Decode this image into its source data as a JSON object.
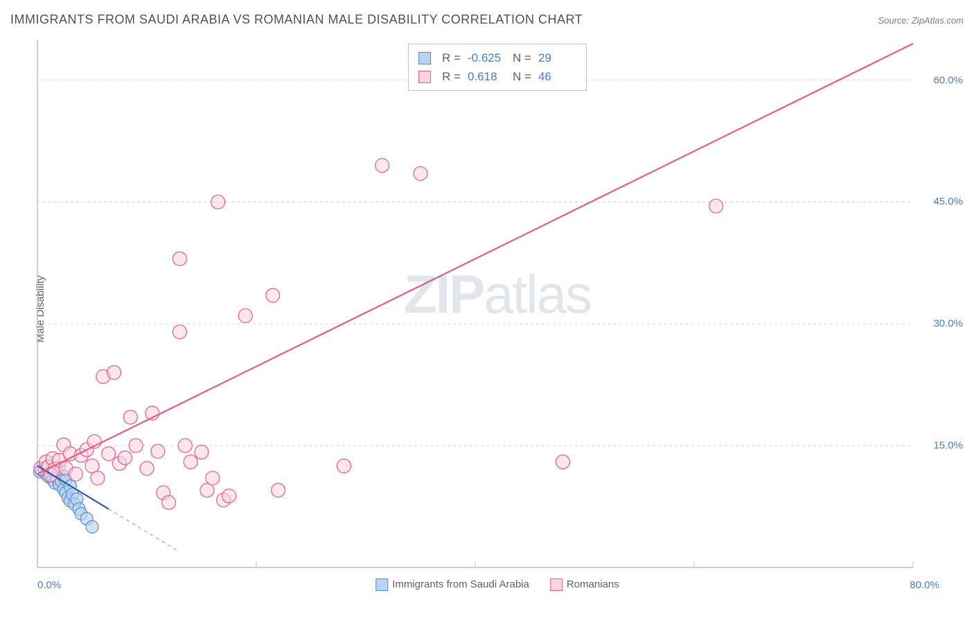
{
  "title": "IMMIGRANTS FROM SAUDI ARABIA VS ROMANIAN MALE DISABILITY CORRELATION CHART",
  "source": "Source: ZipAtlas.com",
  "y_axis_label": "Male Disability",
  "watermark": {
    "part1": "ZIP",
    "part2": "atlas"
  },
  "chart": {
    "type": "scatter",
    "background_color": "#ffffff",
    "grid_color": "#d6d6d6",
    "axis_color": "#bfbfbf",
    "label_color": "#4a7ac7",
    "title_color": "#505050",
    "x_domain": [
      0,
      80
    ],
    "y_domain": [
      0,
      65
    ],
    "x_ticks": [
      0,
      20,
      40,
      60,
      80
    ],
    "x_tick_labels": [
      "0.0%",
      "",
      "",
      "",
      "80.0%"
    ],
    "y_ticks": [
      15,
      30,
      45,
      60
    ],
    "y_tick_labels": [
      "15.0%",
      "30.0%",
      "45.0%",
      "60.0%"
    ],
    "series": [
      {
        "name": "Immigrants from Saudi Arabia",
        "fill": "#b9d3f0",
        "stroke": "#5a8cd0",
        "marker_radius": 9,
        "marker_opacity": 0.65,
        "line_color": "#2a5aa8",
        "line_width": 2.2,
        "dash_tail": true,
        "regression": {
          "x1": 0,
          "y1": 12.5,
          "x2": 6.5,
          "y2": 7.2,
          "x_tail": 13
        },
        "R": "-0.625",
        "N": "29",
        "points": [
          [
            0.2,
            11.8
          ],
          [
            0.4,
            12.0
          ],
          [
            0.6,
            12.2
          ],
          [
            0.8,
            11.5
          ],
          [
            1.0,
            11.2
          ],
          [
            1.0,
            12.4
          ],
          [
            1.2,
            11.6
          ],
          [
            1.4,
            10.8
          ],
          [
            1.4,
            11.9
          ],
          [
            1.6,
            10.4
          ],
          [
            1.6,
            12.0
          ],
          [
            1.8,
            11.0
          ],
          [
            2.0,
            10.2
          ],
          [
            2.0,
            12.3
          ],
          [
            2.2,
            10.6
          ],
          [
            2.4,
            9.6
          ],
          [
            2.4,
            11.2
          ],
          [
            2.6,
            9.2
          ],
          [
            2.6,
            10.8
          ],
          [
            2.8,
            8.6
          ],
          [
            3.0,
            8.2
          ],
          [
            3.0,
            10.0
          ],
          [
            3.2,
            9.0
          ],
          [
            3.4,
            7.8
          ],
          [
            3.6,
            8.4
          ],
          [
            3.8,
            7.2
          ],
          [
            4.0,
            6.6
          ],
          [
            4.5,
            6.0
          ],
          [
            5.0,
            5.0
          ]
        ]
      },
      {
        "name": "Romanians",
        "fill": "#fcd4dd",
        "stroke": "#ea5a85",
        "marker_radius": 10,
        "marker_opacity": 0.55,
        "line_color": "#ea5a85",
        "line_width": 2.2,
        "dash_tail": false,
        "regression": {
          "x1": 0,
          "y1": 11.5,
          "x2": 80,
          "y2": 64.5
        },
        "R": "0.618",
        "N": "46",
        "points": [
          [
            0.3,
            12.2
          ],
          [
            0.8,
            13.0
          ],
          [
            1.0,
            12.4
          ],
          [
            1.2,
            11.4
          ],
          [
            1.4,
            13.4
          ],
          [
            1.6,
            12.1
          ],
          [
            2.0,
            13.2
          ],
          [
            2.4,
            15.1
          ],
          [
            2.6,
            12.2
          ],
          [
            3.0,
            14.0
          ],
          [
            3.5,
            11.5
          ],
          [
            4.0,
            13.8
          ],
          [
            4.5,
            14.5
          ],
          [
            5.0,
            12.5
          ],
          [
            5.2,
            15.5
          ],
          [
            5.5,
            11.0
          ],
          [
            6.0,
            23.5
          ],
          [
            6.5,
            14.0
          ],
          [
            7.0,
            24.0
          ],
          [
            7.5,
            12.8
          ],
          [
            8.0,
            13.5
          ],
          [
            8.5,
            18.5
          ],
          [
            9.0,
            15.0
          ],
          [
            10.0,
            12.2
          ],
          [
            10.5,
            19.0
          ],
          [
            11.0,
            14.3
          ],
          [
            11.5,
            9.2
          ],
          [
            12.0,
            8.0
          ],
          [
            13.0,
            29.0
          ],
          [
            13.5,
            15.0
          ],
          [
            14.0,
            13.0
          ],
          [
            15.0,
            14.2
          ],
          [
            15.5,
            9.5
          ],
          [
            16.0,
            11.0
          ],
          [
            13.0,
            38.0
          ],
          [
            16.5,
            45.0
          ],
          [
            17.0,
            8.3
          ],
          [
            17.5,
            8.8
          ],
          [
            19.0,
            31.0
          ],
          [
            21.5,
            33.5
          ],
          [
            22.0,
            9.5
          ],
          [
            28.0,
            12.5
          ],
          [
            31.5,
            49.5
          ],
          [
            35.0,
            48.5
          ],
          [
            48.0,
            13.0
          ],
          [
            62.0,
            44.5
          ]
        ]
      }
    ]
  },
  "bottom_legend": {
    "items": [
      {
        "label": "Immigrants from Saudi Arabia",
        "fill": "#b9d3f0",
        "stroke": "#5a8cd0"
      },
      {
        "label": "Romanians",
        "fill": "#fcd4dd",
        "stroke": "#ea5a85"
      }
    ]
  },
  "top_legend": {
    "rows": [
      {
        "swatch_fill": "#b9d3f0",
        "swatch_stroke": "#5a8cd0",
        "R_label": "R =",
        "R": "-0.625",
        "N_label": "N =",
        "N": "29"
      },
      {
        "swatch_fill": "#fcd4dd",
        "swatch_stroke": "#ea5a85",
        "R_label": "R =",
        "R": "0.618",
        "N_label": "N =",
        "N": "46"
      }
    ]
  }
}
